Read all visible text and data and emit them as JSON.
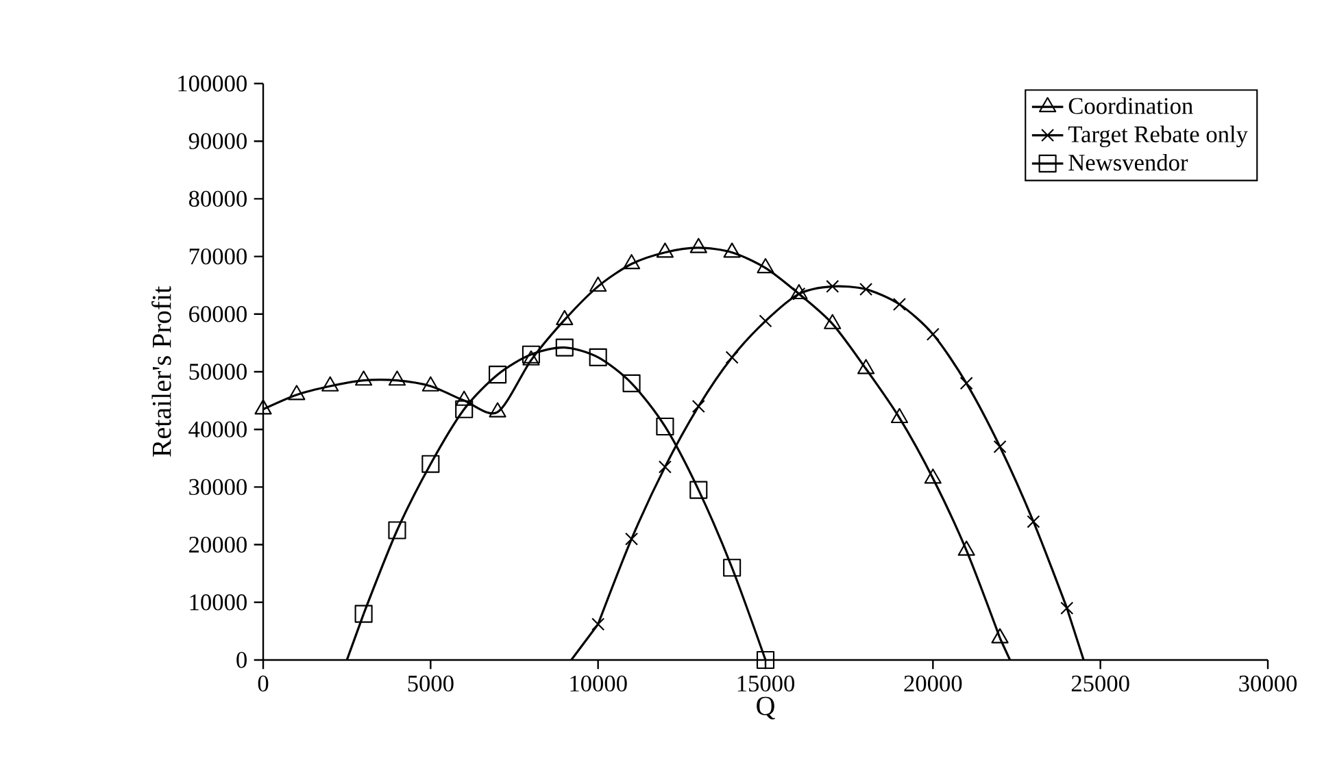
{
  "chart_data": {
    "type": "line",
    "xlabel": "$Q$",
    "ylabel": "Retailer's Profit",
    "xlim": [
      0,
      30000
    ],
    "ylim": [
      0,
      100000
    ],
    "xticks": [
      0,
      5000,
      10000,
      15000,
      20000,
      25000,
      30000
    ],
    "yticks": [
      0,
      10000,
      20000,
      30000,
      40000,
      50000,
      60000,
      70000,
      80000,
      90000,
      100000
    ],
    "grid": false,
    "legend": "top right",
    "line_style": "solid",
    "series": [
      {
        "name": "Coordination",
        "color": "#000000",
        "marker": "triangle",
        "x": [
          0,
          1000,
          2000,
          3000,
          4000,
          5000,
          6000,
          7000,
          8000,
          9000,
          10000,
          11000,
          12000,
          13000,
          14000,
          15000,
          16000,
          17000,
          18000,
          19000,
          20000,
          21000,
          22000
        ],
        "values": [
          43500,
          46000,
          47500,
          48500,
          48500,
          47500,
          45000,
          43000,
          52000,
          59000,
          64800,
          68700,
          70700,
          71500,
          70700,
          68000,
          63500,
          58300,
          50500,
          42000,
          31500,
          19000,
          3800
        ]
      },
      {
        "name": "Target Rebate only",
        "color": "#000000",
        "marker": "cross",
        "x": [
          10000,
          11000,
          12000,
          13000,
          14000,
          15000,
          16000,
          17000,
          18000,
          19000,
          20000,
          21000,
          22000,
          23000,
          24000
        ],
        "values": [
          6200,
          21000,
          33500,
          44000,
          52500,
          58800,
          63500,
          64800,
          64300,
          61700,
          56500,
          48000,
          37000,
          24000,
          9000
        ]
      },
      {
        "name": "Newsvendor",
        "color": "#000000",
        "marker": "square",
        "x": [
          3000,
          4000,
          5000,
          6000,
          7000,
          8000,
          9000,
          10000,
          11000,
          12000,
          13000,
          14000,
          15000
        ],
        "values": [
          8000,
          22500,
          34000,
          43500,
          49500,
          53000,
          54200,
          52500,
          48000,
          40500,
          29500,
          16000,
          0
        ]
      },
      {
        "color": "#000000",
        "marker": "none",
        "x": [
          22000,
          22300
        ],
        "values": [
          3800,
          0
        ]
      },
      {
        "color": "#000000",
        "marker": "none",
        "x": [
          9200,
          10000
        ],
        "values": [
          0,
          6200
        ]
      },
      {
        "color": "#000000",
        "marker": "none",
        "x": [
          24000,
          24500
        ],
        "values": [
          9000,
          0
        ]
      },
      {
        "color": "#000000",
        "marker": "none",
        "x": [
          2500,
          3000
        ],
        "values": [
          0,
          8000
        ]
      }
    ]
  }
}
